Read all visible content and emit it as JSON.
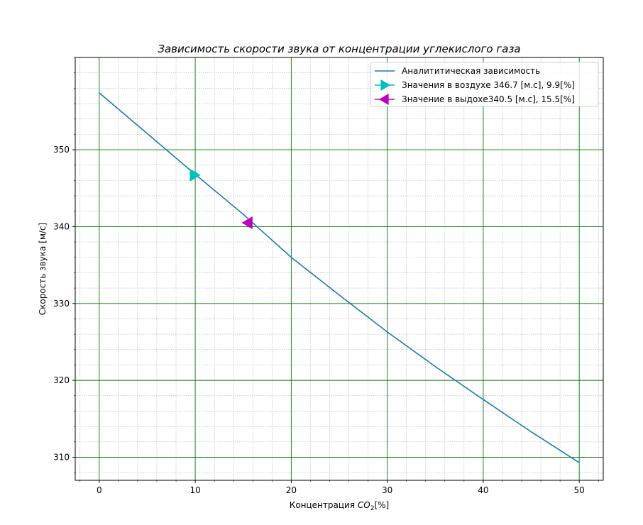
{
  "chart_data": {
    "type": "line",
    "title": "Зависимость скорости звука от концентрации углекислого газа",
    "xlabel_prefix": "Концентрация ",
    "xlabel_symbol": "CO",
    "xlabel_subscript": "2",
    "xlabel_suffix": "[%]",
    "ylabel": "Скорость звука [м/с]",
    "xlim": [
      -2.5,
      52.5
    ],
    "ylim": [
      307,
      362
    ],
    "x_ticks": [
      0,
      10,
      20,
      30,
      40,
      50
    ],
    "x_tick_labels": [
      "0",
      "10",
      "20",
      "30",
      "40",
      "50"
    ],
    "y_ticks": [
      310,
      320,
      330,
      340,
      350
    ],
    "y_tick_labels": [
      "310",
      "320",
      "330",
      "340",
      "350"
    ],
    "x_minor_step": 2,
    "y_minor_step": 2,
    "grid": true,
    "major_grid_color": "#008000",
    "minor_grid_color": "#b0b0b0",
    "legend_position": "top-right",
    "series": [
      {
        "name": "Аналититическая зависимость",
        "kind": "line",
        "color": "#1f77b4",
        "x": [
          0,
          5,
          10,
          15,
          20,
          25,
          30,
          35,
          40,
          45,
          50
        ],
        "y": [
          357.4,
          352.1,
          346.8,
          341.6,
          336.0,
          331.1,
          326.3,
          321.8,
          317.5,
          313.3,
          309.3
        ]
      },
      {
        "name": "Значения в воздухе 346.7 [м.с], 9.9[%]",
        "kind": "marker",
        "marker": "triangle-right",
        "color": "#00bfbf",
        "x": [
          9.9
        ],
        "y": [
          346.7
        ]
      },
      {
        "name": "Значение в выдохе340.5 [м.с], 15.5[%]",
        "kind": "marker",
        "marker": "triangle-left",
        "color": "#bf00bf",
        "x": [
          15.5
        ],
        "y": [
          340.5
        ]
      }
    ]
  }
}
